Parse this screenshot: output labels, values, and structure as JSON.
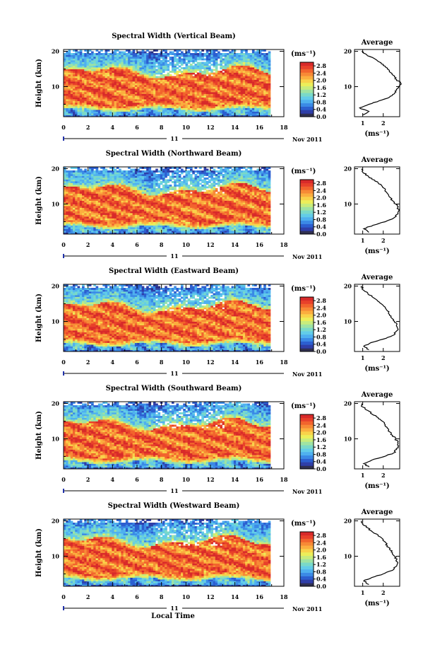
{
  "chart_data": [
    {
      "type": "heatmap",
      "title": "Spectral Width (Vertical Beam)",
      "ylabel": "Height (km)",
      "x_ticks": [
        "0",
        "2",
        "4",
        "6",
        "8",
        "10",
        "12",
        "14",
        "16",
        "18"
      ],
      "xlim": [
        0,
        18
      ],
      "ylim": [
        1.5,
        20.5
      ],
      "y_ticks": [
        "10",
        "20"
      ],
      "date_day": "11",
      "date_month": "Nov 2011",
      "colorbar": {
        "unit": "(ms⁻¹)",
        "ticks": [
          "2.8",
          "2.4",
          "2.0",
          "1.6",
          "1.2",
          "0.8",
          "0.4",
          "0.0"
        ],
        "range": [
          0,
          3
        ]
      },
      "profile": {
        "title": "Average",
        "xlabel": "(ms⁻¹)",
        "x_ticks": [
          "1",
          "2"
        ],
        "xlim": [
          0.6,
          2.8
        ],
        "heights": [
          2,
          3,
          4,
          5,
          6,
          7,
          8,
          9,
          10,
          11,
          12,
          13,
          14,
          15,
          16,
          17,
          18,
          19,
          20
        ],
        "values": [
          1.0,
          1.3,
          0.85,
          1.3,
          1.8,
          2.3,
          2.55,
          2.65,
          2.75,
          2.85,
          2.65,
          2.55,
          2.35,
          2.2,
          2.0,
          1.8,
          1.55,
          1.2,
          0.95
        ]
      }
    },
    {
      "type": "heatmap",
      "title": "Spectral Width (Northward Beam)",
      "ylabel": "Height (km)",
      "x_ticks": [
        "0",
        "2",
        "4",
        "6",
        "8",
        "10",
        "12",
        "14",
        "16",
        "18"
      ],
      "xlim": [
        0,
        18
      ],
      "ylim": [
        1.5,
        20.5
      ],
      "y_ticks": [
        "10",
        "20"
      ],
      "date_day": "11",
      "date_month": "Nov 2011",
      "colorbar": {
        "unit": "(ms⁻¹)",
        "ticks": [
          "2.8",
          "2.4",
          "2.0",
          "1.6",
          "1.2",
          "0.8",
          "0.4",
          "0.0"
        ],
        "range": [
          0,
          3
        ]
      },
      "profile": {
        "title": "Average",
        "xlabel": "(ms⁻¹)",
        "x_ticks": [
          "1",
          "2"
        ],
        "xlim": [
          0.6,
          2.8
        ],
        "heights": [
          2,
          3,
          4,
          5,
          6,
          7,
          8,
          9,
          10,
          11,
          12,
          13,
          14,
          15,
          16,
          17,
          18,
          19,
          20
        ],
        "values": [
          1.3,
          1.05,
          1.5,
          2.1,
          2.5,
          2.65,
          2.75,
          2.7,
          2.6,
          2.45,
          2.3,
          2.2,
          2.1,
          1.95,
          1.75,
          1.45,
          1.25,
          1.0,
          0.95
        ]
      }
    },
    {
      "type": "heatmap",
      "title": "Spectral Width (Eastward Beam)",
      "ylabel": "Height (km)",
      "x_ticks": [
        "0",
        "2",
        "4",
        "6",
        "8",
        "10",
        "12",
        "14",
        "16",
        "18"
      ],
      "xlim": [
        0,
        18
      ],
      "ylim": [
        1.5,
        20.5
      ],
      "y_ticks": [
        "10",
        "20"
      ],
      "date_day": "11",
      "date_month": "Nov 2011",
      "colorbar": {
        "unit": "(ms⁻¹)",
        "ticks": [
          "2.8",
          "2.4",
          "2.0",
          "1.6",
          "1.2",
          "0.8",
          "0.4",
          "0.0"
        ],
        "range": [
          0,
          3
        ]
      },
      "profile": {
        "title": "Average",
        "xlabel": "(ms⁻¹)",
        "x_ticks": [
          "1",
          "2"
        ],
        "xlim": [
          0.6,
          2.8
        ],
        "heights": [
          2,
          3,
          4,
          5,
          6,
          7,
          8,
          9,
          10,
          11,
          12,
          13,
          14,
          15,
          16,
          17,
          18,
          19,
          20
        ],
        "values": [
          1.3,
          1.05,
          1.4,
          2.0,
          2.45,
          2.6,
          2.7,
          2.65,
          2.55,
          2.4,
          2.3,
          2.2,
          2.1,
          1.9,
          1.7,
          1.45,
          1.25,
          1.0,
          0.95
        ]
      }
    },
    {
      "type": "heatmap",
      "title": "Spectral Width (Southward Beam)",
      "ylabel": "Height (km)",
      "x_ticks": [
        "0",
        "2",
        "4",
        "6",
        "8",
        "10",
        "12",
        "14",
        "16",
        "18"
      ],
      "xlim": [
        0,
        18
      ],
      "ylim": [
        1.5,
        20.5
      ],
      "y_ticks": [
        "10",
        "20"
      ],
      "date_day": "11",
      "date_month": "Nov 2011",
      "colorbar": {
        "unit": "(ms⁻¹)",
        "ticks": [
          "2.8",
          "2.4",
          "2.0",
          "1.6",
          "1.2",
          "0.8",
          "0.4",
          "0.0"
        ],
        "range": [
          0,
          3
        ]
      },
      "profile": {
        "title": "Average",
        "xlabel": "(ms⁻¹)",
        "x_ticks": [
          "1",
          "2"
        ],
        "xlim": [
          0.6,
          2.8
        ],
        "heights": [
          2,
          3,
          4,
          5,
          6,
          7,
          8,
          9,
          10,
          11,
          12,
          13,
          14,
          15,
          16,
          17,
          18,
          19,
          20
        ],
        "values": [
          1.3,
          1.05,
          1.45,
          2.05,
          2.5,
          2.65,
          2.75,
          2.7,
          2.6,
          2.45,
          2.3,
          2.2,
          2.1,
          1.95,
          1.75,
          1.45,
          1.25,
          1.0,
          0.95
        ]
      }
    },
    {
      "type": "heatmap",
      "title": "Spectral Width (Westward Beam)",
      "ylabel": "Height (km)",
      "xlabel": "Local Time",
      "x_ticks": [
        "0",
        "2",
        "4",
        "6",
        "8",
        "10",
        "12",
        "14",
        "16",
        "18"
      ],
      "xlim": [
        0,
        18
      ],
      "ylim": [
        1.5,
        20.5
      ],
      "y_ticks": [
        "10",
        "20"
      ],
      "date_day": "11",
      "date_month": "Nov 2011",
      "colorbar": {
        "unit": "(ms⁻¹)",
        "ticks": [
          "2.8",
          "2.4",
          "2.0",
          "1.6",
          "1.2",
          "0.8",
          "0.4",
          "0.0"
        ],
        "range": [
          0,
          3
        ]
      },
      "profile": {
        "title": "Average",
        "xlabel": "(ms⁻¹)",
        "x_ticks": [
          "1",
          "2"
        ],
        "xlim": [
          0.6,
          2.8
        ],
        "heights": [
          2,
          3,
          4,
          5,
          6,
          7,
          8,
          9,
          10,
          11,
          12,
          13,
          14,
          15,
          16,
          17,
          18,
          19,
          20
        ],
        "values": [
          1.3,
          1.05,
          1.45,
          2.0,
          2.45,
          2.6,
          2.7,
          2.65,
          2.55,
          2.45,
          2.3,
          2.2,
          2.1,
          1.95,
          1.75,
          1.45,
          1.25,
          1.0,
          0.95
        ]
      }
    }
  ],
  "colors": {
    "palette": [
      "#2b2e80",
      "#2f3fa8",
      "#2c5fd0",
      "#3b8ae6",
      "#4fb0ef",
      "#62cce8",
      "#7ad9c8",
      "#9fe3a3",
      "#c8ec7c",
      "#ecee5a",
      "#f9d24a",
      "#fbae3f",
      "#f78a36",
      "#f2642d",
      "#e8412a",
      "#d82a2a"
    ],
    "zero": "#303050"
  }
}
